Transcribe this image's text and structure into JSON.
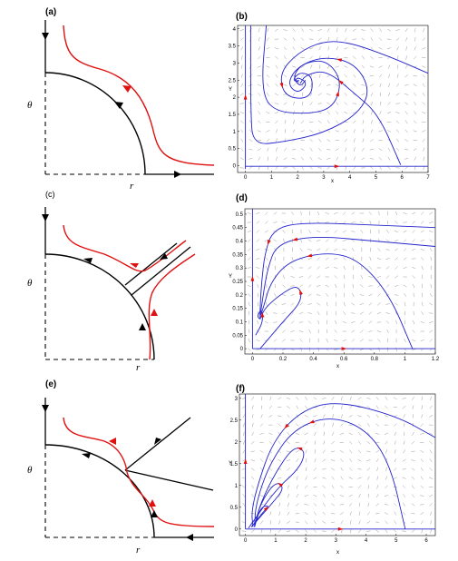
{
  "panels": {
    "a": {
      "label": "(a)",
      "theta": "θ",
      "r": "r"
    },
    "b": {
      "label": "(b)",
      "xlabel": "x",
      "ylabel": "Y"
    },
    "c": {
      "label": "(c)",
      "theta": "θ",
      "r": "r"
    },
    "d": {
      "label": "(d)",
      "xlabel": "x",
      "ylabel": "Y"
    },
    "e": {
      "label": "(e)",
      "theta": "θ",
      "r": "r"
    },
    "f": {
      "label": "(f)",
      "xlabel": "x",
      "ylabel": "Y"
    }
  },
  "colors": {
    "trajectory": "#2222cc",
    "arrow": "#e01010",
    "schematic_red": "#e01010",
    "field": "#9a9a9a"
  },
  "chart_data": [
    {
      "type": "line",
      "panel": "b",
      "xlabel": "x",
      "ylabel": "Y",
      "xlim": [
        -0.3,
        7
      ],
      "ylim": [
        -0.2,
        4.1
      ],
      "xticks": [
        "0",
        "1",
        "2",
        "3",
        "4",
        "5",
        "6",
        "7"
      ],
      "yticks": [
        "0",
        "0.5",
        "1",
        "1.5",
        "2",
        "2.5",
        "3",
        "3.5",
        "4"
      ],
      "series": [
        {
          "values": [
            [
              0.2,
              4.1
            ],
            [
              0.2,
              1.5
            ],
            [
              0.3,
              0.6
            ],
            [
              1.5,
              0.7
            ],
            [
              3,
              0.95
            ],
            [
              4.3,
              1.5
            ],
            [
              4.8,
              2.2
            ],
            [
              4.2,
              3.0
            ],
            [
              3,
              3.2
            ],
            [
              2,
              2.9
            ],
            [
              1.6,
              2.4
            ],
            [
              2,
              2.1
            ],
            [
              2.4,
              2.4
            ],
            [
              2,
              2.6
            ],
            [
              1.9,
              2.45
            ],
            [
              2.05,
              2.5
            ]
          ]
        },
        {
          "values": [
            [
              0.8,
              4.1
            ],
            [
              0.6,
              2.3
            ],
            [
              1.0,
              1.6
            ],
            [
              2.4,
              1.5
            ],
            [
              3.4,
              1.7
            ],
            [
              3.7,
              2.5
            ],
            [
              3.1,
              3.1
            ],
            [
              2.2,
              3.0
            ],
            [
              1.8,
              2.6
            ],
            [
              2.1,
              2.3
            ],
            [
              2.3,
              2.5
            ]
          ]
        },
        {
          "values": [
            [
              7,
              2.7
            ],
            [
              5.5,
              3.2
            ],
            [
              4,
              3.6
            ],
            [
              3,
              3.65
            ],
            [
              2,
              3.3
            ],
            [
              1.3,
              2.7
            ],
            [
              1.5,
              2.0
            ],
            [
              2.5,
              1.95
            ],
            [
              2.6,
              2.6
            ],
            [
              2.1,
              2.75
            ],
            [
              1.8,
              2.5
            ],
            [
              2.05,
              2.45
            ]
          ]
        },
        {
          "values": [
            [
              5.95,
              0.02
            ],
            [
              5.1,
              1.5
            ],
            [
              4.2,
              2.1
            ],
            [
              3.1,
              2.8
            ],
            [
              2.3,
              2.65
            ],
            [
              2.1,
              2.4
            ]
          ]
        },
        {
          "values": [
            [
              0,
              -0.02
            ],
            [
              7,
              -0.02
            ]
          ]
        },
        {
          "values": [
            [
              0,
              -0.1
            ],
            [
              0,
              4.1
            ]
          ]
        }
      ]
    },
    {
      "type": "line",
      "panel": "d",
      "xlabel": "x",
      "ylabel": "Y",
      "xlim": [
        -0.05,
        1.2
      ],
      "ylim": [
        -0.02,
        0.52
      ],
      "xticks": [
        "0",
        "0.2",
        "0.4",
        "0.6",
        "0.8",
        "1",
        "1.2"
      ],
      "yticks": [
        "0",
        "0.05",
        "0.1",
        "0.15",
        "0.2",
        "0.25",
        "0.3",
        "0.35",
        "0.4",
        "0.45",
        "0.5"
      ],
      "series": [
        {
          "values": [
            [
              1.2,
              0.45
            ],
            [
              0.8,
              0.46
            ],
            [
              0.3,
              0.47
            ],
            [
              0.13,
              0.44
            ],
            [
              0.08,
              0.35
            ],
            [
              0.06,
              0.25
            ],
            [
              0.05,
              0.15
            ],
            [
              0.05,
              0.11
            ]
          ]
        },
        {
          "values": [
            [
              1.2,
              0.38
            ],
            [
              0.8,
              0.4
            ],
            [
              0.4,
              0.42
            ],
            [
              0.16,
              0.39
            ],
            [
              0.1,
              0.3
            ],
            [
              0.07,
              0.2
            ],
            [
              0.05,
              0.12
            ]
          ]
        },
        {
          "values": [
            [
              1.05,
              0.0
            ],
            [
              0.9,
              0.2
            ],
            [
              0.7,
              0.33
            ],
            [
              0.5,
              0.36
            ],
            [
              0.25,
              0.33
            ],
            [
              0.12,
              0.25
            ],
            [
              0.07,
              0.15
            ],
            [
              0.05,
              0.12
            ]
          ]
        },
        {
          "values": [
            [
              0.05,
              0.0
            ],
            [
              0.2,
              0.1
            ],
            [
              0.33,
              0.18
            ],
            [
              0.3,
              0.24
            ],
            [
              0.18,
              0.2
            ],
            [
              0.08,
              0.15
            ],
            [
              0.05,
              0.11
            ]
          ]
        },
        {
          "values": [
            [
              0.02,
              0.05
            ],
            [
              0.07,
              0.1
            ],
            [
              0.06,
              0.15
            ],
            [
              0.03,
              0.12
            ],
            [
              0.05,
              0.11
            ]
          ]
        },
        {
          "values": [
            [
              0,
              0.0
            ],
            [
              1.2,
              0.0
            ]
          ]
        },
        {
          "values": [
            [
              0,
              0.0
            ],
            [
              0,
              0.52
            ]
          ]
        }
      ]
    },
    {
      "type": "line",
      "panel": "f",
      "xlabel": "x",
      "ylabel": "Y",
      "xlim": [
        -0.2,
        6.3
      ],
      "ylim": [
        -0.15,
        3.1
      ],
      "xticks": [
        "0",
        "1",
        "2",
        "3",
        "4",
        "5",
        "6"
      ],
      "yticks": [
        "0",
        "0.5",
        "1",
        "1.5",
        "2",
        "2.5",
        "3"
      ],
      "series": [
        {
          "values": [
            [
              6.3,
              2.1
            ],
            [
              5,
              2.6
            ],
            [
              3,
              2.95
            ],
            [
              1.8,
              2.7
            ],
            [
              0.9,
              2.0
            ],
            [
              0.4,
              1.0
            ],
            [
              0.2,
              0.4
            ],
            [
              0.25,
              0.05
            ]
          ]
        },
        {
          "values": [
            [
              5.3,
              0.0
            ],
            [
              4.8,
              1.5
            ],
            [
              4,
              2.3
            ],
            [
              2.8,
              2.6
            ],
            [
              1.6,
              2.3
            ],
            [
              0.8,
              1.5
            ],
            [
              0.35,
              0.6
            ],
            [
              0.3,
              0.05
            ]
          ]
        },
        {
          "values": [
            [
              0.1,
              0.02
            ],
            [
              1.0,
              0.9
            ],
            [
              1.8,
              1.4
            ],
            [
              2.0,
              1.8
            ],
            [
              1.6,
              1.9
            ],
            [
              1.0,
              1.3
            ],
            [
              0.5,
              0.6
            ],
            [
              0.3,
              0.05
            ]
          ]
        },
        {
          "values": [
            [
              0.2,
              0.05
            ],
            [
              0.9,
              0.6
            ],
            [
              1.3,
              0.95
            ],
            [
              1.0,
              1.1
            ],
            [
              0.5,
              0.6
            ],
            [
              0.3,
              0.05
            ]
          ]
        },
        {
          "values": [
            [
              0.2,
              0.05
            ],
            [
              0.6,
              0.4
            ],
            [
              0.8,
              0.55
            ],
            [
              0.5,
              0.5
            ],
            [
              0.3,
              0.05
            ]
          ]
        },
        {
          "values": [
            [
              0,
              0.0
            ],
            [
              6.3,
              0.0
            ]
          ]
        },
        {
          "values": [
            [
              0,
              0.0
            ],
            [
              0,
              3.1
            ]
          ]
        }
      ]
    }
  ]
}
